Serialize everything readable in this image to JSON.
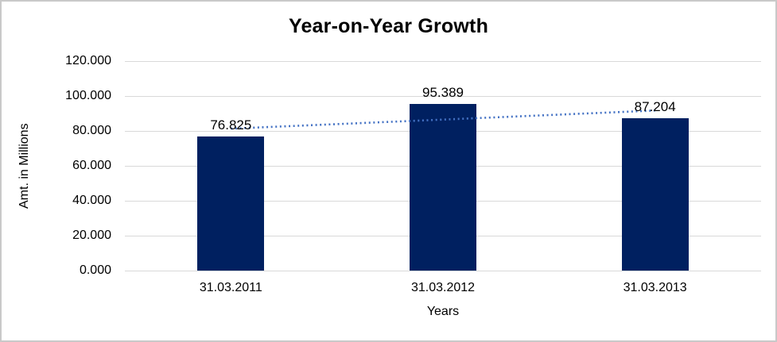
{
  "chart_data": {
    "type": "bar",
    "title": "Year-on-Year Growth",
    "xlabel": "Years",
    "ylabel": "Amt. in Millions",
    "categories": [
      "31.03.2011",
      "31.03.2012",
      "31.03.2013"
    ],
    "values": [
      76.825,
      95.389,
      87.204
    ],
    "value_labels": [
      "76.825",
      "95.389",
      "87.204"
    ],
    "ylim": [
      0,
      120
    ],
    "ytick_step": 20,
    "ytick_labels": [
      "0.000",
      "20.000",
      "40.000",
      "60.000",
      "80.000",
      "100.000",
      "120.000"
    ],
    "grid": true,
    "legend_position": "none",
    "bar_color": "#002060",
    "gridline_color": "#d9d9d9",
    "trendline": {
      "type": "linear",
      "style": "dotted",
      "color": "#4472C4",
      "values": [
        81.3,
        86.5,
        91.7
      ]
    }
  }
}
